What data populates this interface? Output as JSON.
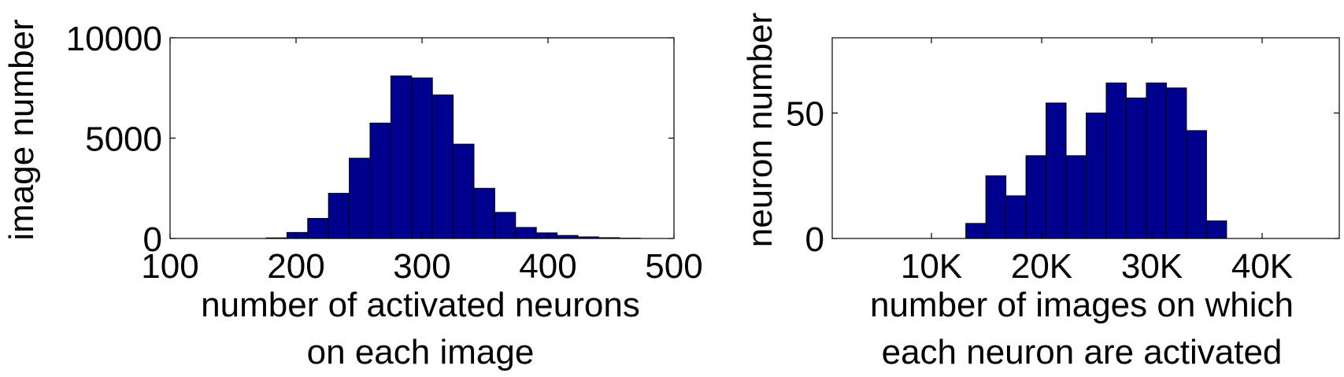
{
  "colors": {
    "bar_fill": "#00008f",
    "bar_stroke": "#000000",
    "axes": "#000000",
    "background": "#ffffff"
  },
  "chart_data": [
    {
      "type": "bar",
      "title": "",
      "xlabel": [
        "number of activated neurons",
        "on each image"
      ],
      "ylabel": "image number",
      "xlim": [
        100,
        500
      ],
      "ylim": [
        0,
        10000
      ],
      "xticks": [
        100,
        200,
        300,
        400,
        500
      ],
      "xtick_labels": [
        "100",
        "200",
        "300",
        "400",
        "500"
      ],
      "yticks": [
        0,
        5000,
        10000
      ],
      "ytick_labels": [
        "0",
        "5000",
        "10000"
      ],
      "grid": false,
      "bin_width": 16.5,
      "bin_centers": [
        118.5,
        135,
        151.5,
        168,
        184.5,
        201,
        217.5,
        234,
        250.5,
        267,
        283.5,
        300,
        316.5,
        333,
        349.5,
        366,
        382.5,
        399,
        415.5,
        432,
        448.5,
        465,
        481.5
      ],
      "values": [
        0,
        0,
        0,
        0,
        30,
        300,
        1000,
        2250,
        4000,
        5750,
        8100,
        8000,
        7150,
        4700,
        2500,
        1300,
        550,
        280,
        150,
        80,
        40,
        15,
        0
      ]
    },
    {
      "type": "bar",
      "title": "",
      "xlabel": [
        "number of images on which",
        "each neuron are activated"
      ],
      "ylabel": "neuron number",
      "xlim": [
        1000,
        47000
      ],
      "ylim": [
        0,
        80
      ],
      "xticks": [
        10000,
        20000,
        30000,
        40000
      ],
      "xtick_labels": [
        "10K",
        "20K",
        "30K",
        "40K"
      ],
      "yticks": [
        0,
        50
      ],
      "ytick_labels": [
        "0",
        "50"
      ],
      "grid": false,
      "bin_width": 1820,
      "bin_centers": [
        14027,
        15847,
        17667,
        19487,
        21307,
        23127,
        24947,
        26767,
        28587,
        30407,
        32227,
        34047,
        35867
      ],
      "values": [
        6,
        25,
        17,
        33,
        54,
        33,
        50,
        62,
        56,
        62,
        60,
        43,
        7
      ]
    }
  ]
}
